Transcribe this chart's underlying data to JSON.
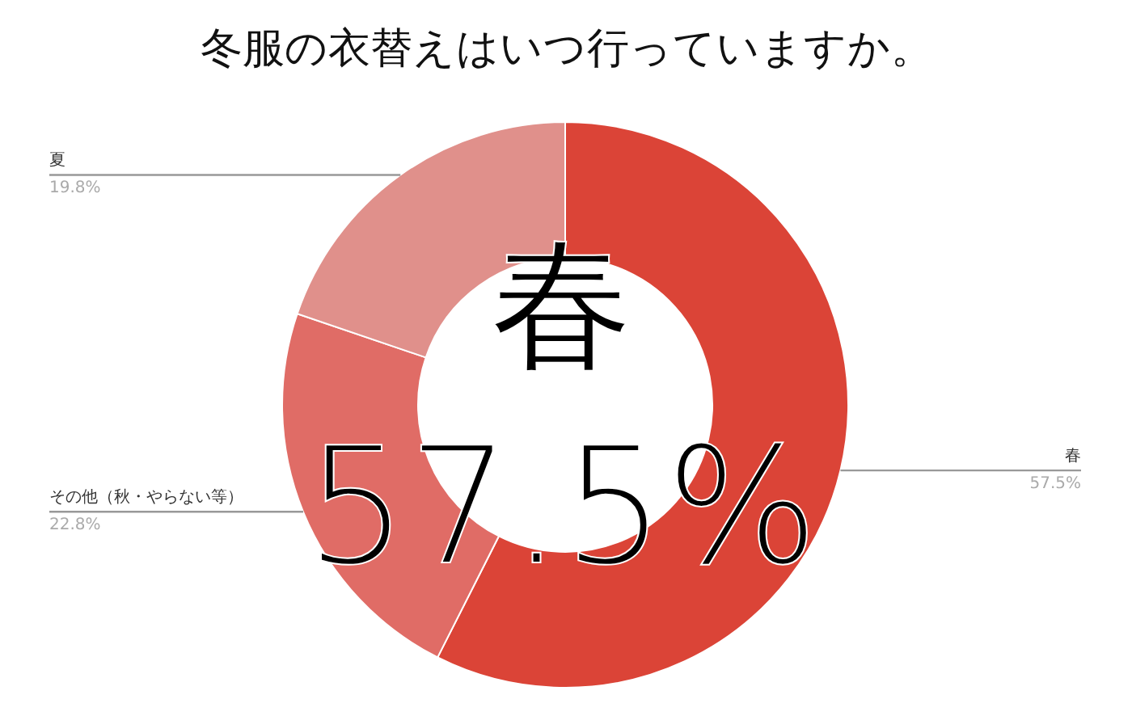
{
  "chart_data": {
    "type": "donut",
    "title": "冬服の衣替えはいつ行っていますか。",
    "categories": [
      "春",
      "その他（秋・やらない等）",
      "夏"
    ],
    "values": [
      57.5,
      22.8,
      19.8
    ],
    "colors": [
      "#db4437",
      "#e06c66",
      "#e0908b"
    ],
    "value_labels": [
      "57.5%",
      "22.8%",
      "19.8%"
    ],
    "annotations": [
      "春",
      "57.5%"
    ]
  }
}
